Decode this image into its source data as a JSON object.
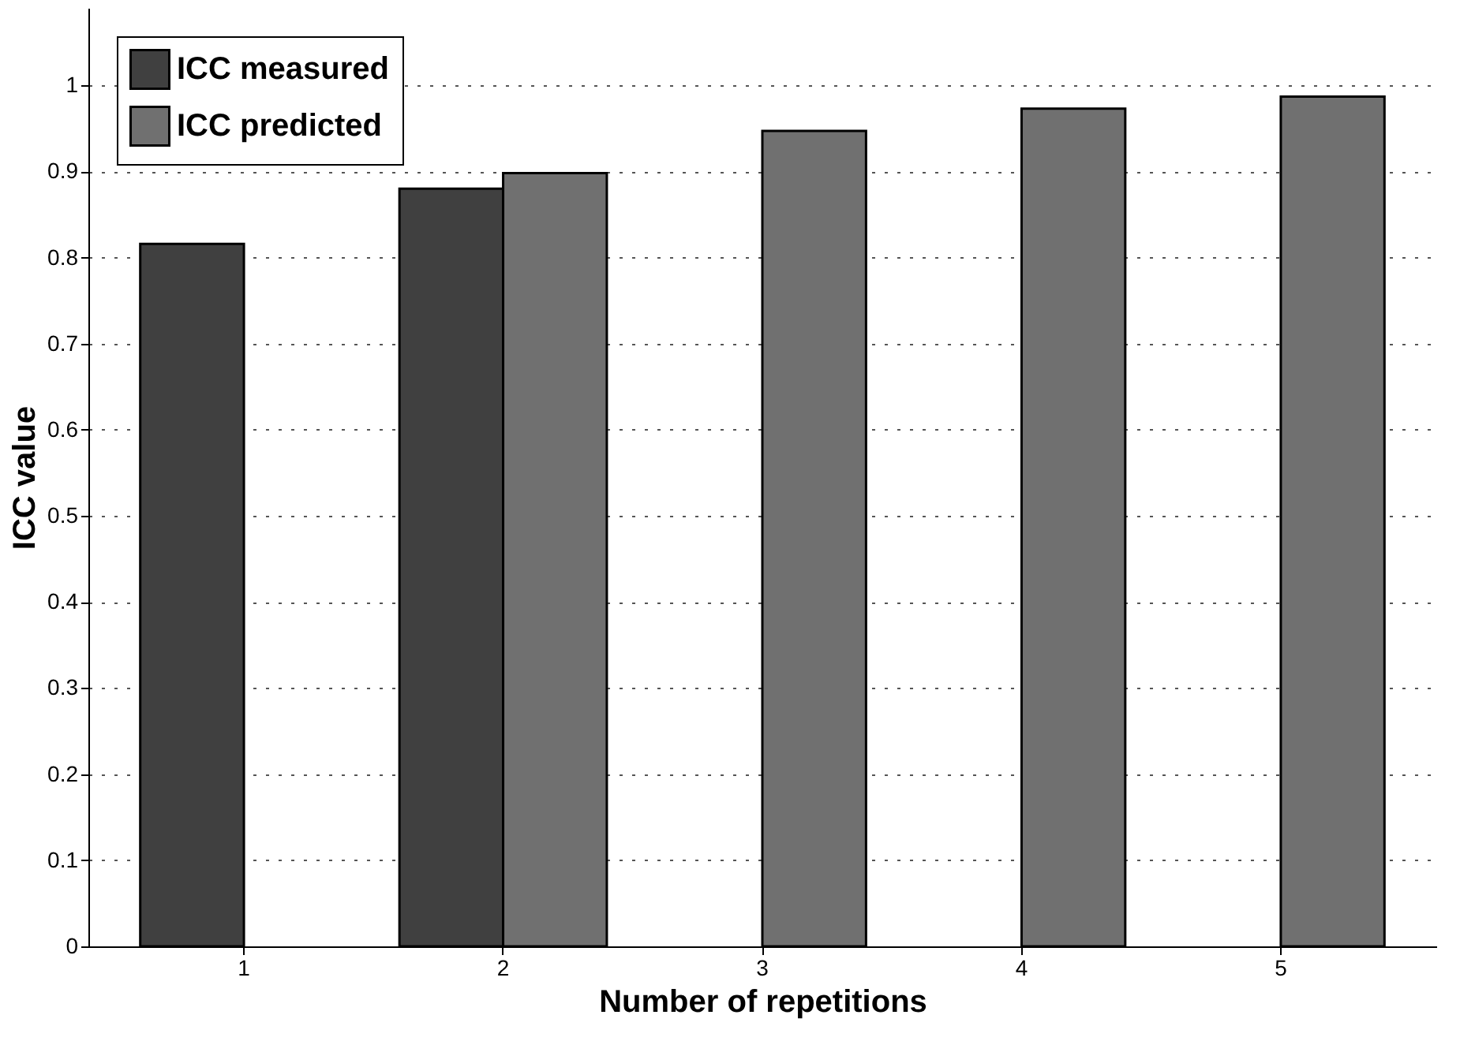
{
  "chart_data": {
    "type": "bar",
    "xlabel": "Number of repetitions",
    "ylabel": "ICC value",
    "categories": [
      "1",
      "2",
      "3",
      "4",
      "5"
    ],
    "series": [
      {
        "name": "ICC measured",
        "color": "#404040",
        "values": [
          0.816,
          0.88,
          null,
          null,
          null
        ]
      },
      {
        "name": "ICC predicted",
        "color": "#707070",
        "values": [
          null,
          0.898,
          0.947,
          0.973,
          0.987
        ]
      }
    ],
    "ylim": [
      0,
      1.09
    ],
    "yticks": [
      0,
      0.1,
      0.2,
      0.3,
      0.4,
      0.5,
      0.6,
      0.7,
      0.8,
      0.9,
      1
    ],
    "grid": "y",
    "legend": "top left"
  }
}
